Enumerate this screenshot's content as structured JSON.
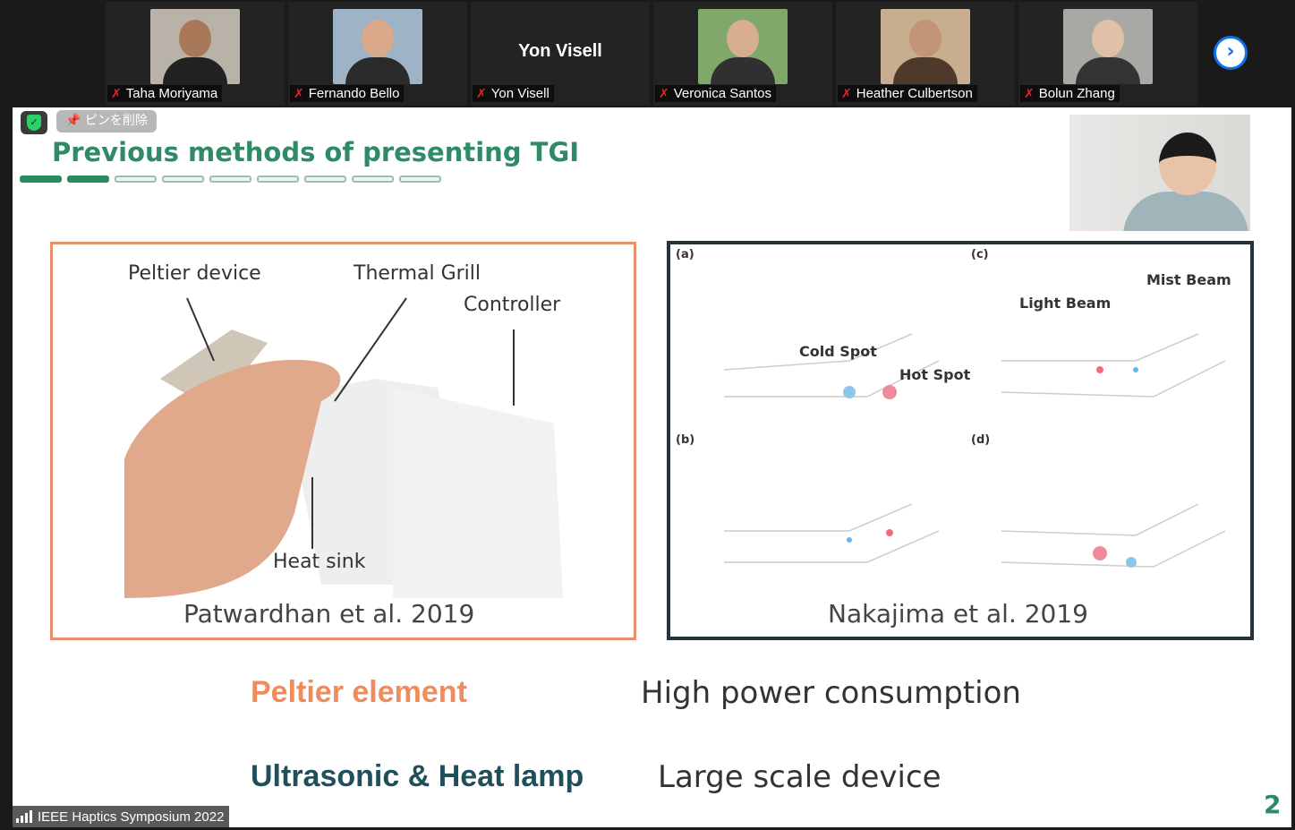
{
  "participants": [
    {
      "name": "Taha Moriyama",
      "video": true,
      "muted": true,
      "bg": "#b9b2a8",
      "skin": "#a87858",
      "shirt": "#222"
    },
    {
      "name": "Fernando Bello",
      "video": true,
      "muted": true,
      "bg": "#9fb3c6",
      "skin": "#d9a98a",
      "shirt": "#2b2b2b"
    },
    {
      "name": "Yon Visell",
      "video": false,
      "muted": true,
      "display_name": "Yon Visell"
    },
    {
      "name": "Veronica Santos",
      "video": true,
      "muted": true,
      "bg": "#7fa86a",
      "skin": "#d8ae90",
      "shirt": "#303030"
    },
    {
      "name": "Heather Culbertson",
      "video": true,
      "muted": true,
      "bg": "#c6ae8e",
      "skin": "#c49476",
      "shirt": "#4e3a2a"
    },
    {
      "name": "Bolun Zhang",
      "video": true,
      "muted": true,
      "bg": "#a8a8a4",
      "skin": "#e0c0a6",
      "shirt": "#333"
    }
  ],
  "next_page_icon": "chevron-right-icon",
  "overlay": {
    "security_icon": "shield-check-icon",
    "unpin_label": "ピンを削除",
    "unpin_icon": "pin-icon"
  },
  "slide": {
    "title": "Previous methods of presenting TGI",
    "progress": {
      "current": 2,
      "total": 9
    },
    "left_figure": {
      "labels": {
        "peltier": "Peltier device",
        "grill": "Thermal Grill",
        "controller": "Controller",
        "heatsink": "Heat sink"
      },
      "citation": "Patwardhan et al. 2019"
    },
    "right_figure": {
      "panels": [
        "(a)",
        "(b)",
        "(c)",
        "(d)"
      ],
      "labels": {
        "cold": "Cold Spot",
        "hot": "Hot Spot",
        "light": "Light Beam",
        "mist": "Mist Beam"
      },
      "citation": "Nakajima et al. 2019"
    },
    "rows": [
      {
        "method": "Peltier element",
        "drawback": "High power consumption"
      },
      {
        "method": "Ultrasonic & Heat lamp",
        "drawback": "Large scale device"
      }
    ],
    "page_number": "2"
  },
  "meeting": {
    "name": "IEEE Haptics Symposium 2022",
    "signal_icon": "signal-bars-icon"
  },
  "colors": {
    "title": "#2f8a66",
    "peltier": "#ee8c5e",
    "ultrasonic": "#1f4f5a",
    "accent": "#0e72ed"
  }
}
